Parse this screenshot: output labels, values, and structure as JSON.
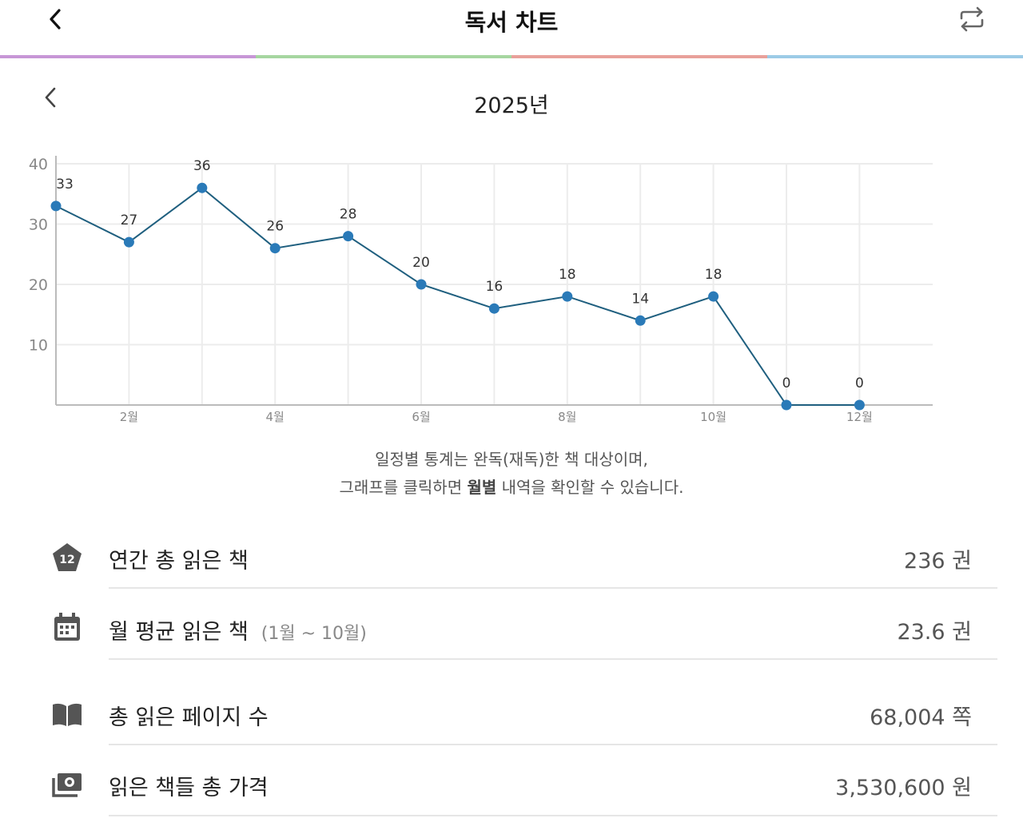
{
  "header": {
    "title": "독서 차트",
    "back_icon": "chevron-left-icon",
    "refresh_icon": "repeat-arrows-icon",
    "strip_colors": [
      "#c796d6",
      "#a6d6a0",
      "#e8a09a",
      "#9ccbe6"
    ]
  },
  "year_nav": {
    "label": "2025년",
    "back_icon": "chevron-left-icon"
  },
  "chart_data": {
    "type": "line",
    "categories": [
      "1월",
      "2월",
      "3월",
      "4월",
      "5월",
      "6월",
      "7월",
      "8월",
      "9월",
      "10월",
      "11월",
      "12월"
    ],
    "x_tick_labels": [
      "2월",
      "4월",
      "6월",
      "8월",
      "10월",
      "12월"
    ],
    "y_ticks": [
      10,
      20,
      30,
      40
    ],
    "values": [
      33,
      27,
      36,
      26,
      28,
      20,
      16,
      18,
      14,
      18,
      0,
      0
    ],
    "ylim": [
      0,
      40
    ],
    "grid": true,
    "line_color": "#1f5f7f",
    "point_color": "#2a7ab8"
  },
  "note": {
    "line1": "일정별 통계는 완독(재독)한 책 대상이며,",
    "line2_pre": "그래프를 클릭하면 ",
    "line2_bold": "월별",
    "line2_post": " 내역을 확인할 수 있습니다."
  },
  "stats": [
    {
      "icon": "pentagon-badge-icon",
      "badge": "12",
      "label": "연간 총 읽은 책",
      "sub": "",
      "value": "236 권"
    },
    {
      "icon": "calendar-icon",
      "label": "월 평균 읽은 책",
      "sub": "(1월 ~ 10월)",
      "value": "23.6 권"
    },
    {
      "icon": "open-book-icon",
      "label": "총 읽은 페이지 수",
      "sub": "",
      "value": "68,004 쪽"
    },
    {
      "icon": "money-icon",
      "label": "읽은 책들 총 가격",
      "sub": "",
      "value": "3,530,600 원"
    }
  ]
}
